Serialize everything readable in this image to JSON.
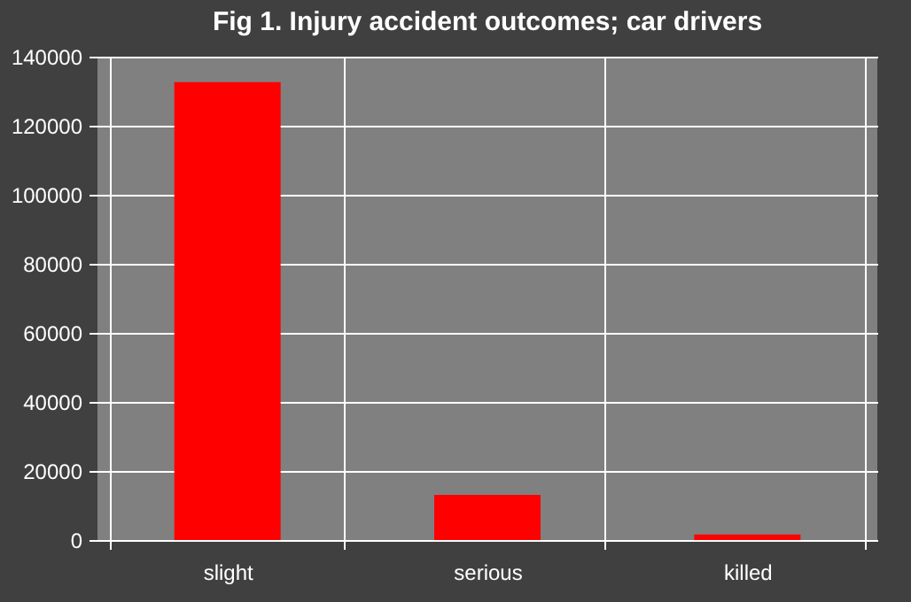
{
  "chart_data": {
    "type": "bar",
    "title": "Fig 1. Injury accident outcomes; car drivers",
    "categories": [
      "slight",
      "serious",
      "killed"
    ],
    "values": [
      132600,
      13100,
      1600
    ],
    "color": "#ff0000",
    "ylim": [
      0,
      140000
    ],
    "yticks": [
      0,
      20000,
      40000,
      60000,
      80000,
      100000,
      120000,
      140000
    ],
    "grid": true
  }
}
